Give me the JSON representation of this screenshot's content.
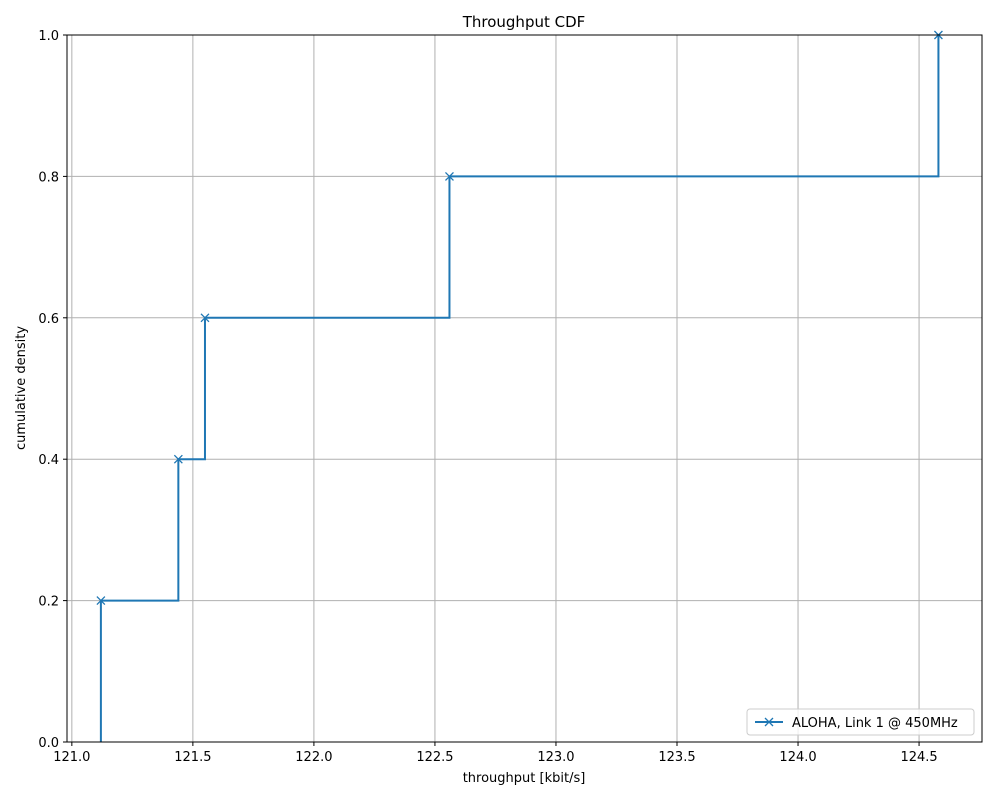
{
  "chart_data": {
    "type": "line",
    "title": "Throughput CDF",
    "xlabel": "throughput [kbit/s]",
    "ylabel": "cumulative density",
    "xlim": [
      120.98,
      124.76
    ],
    "ylim": [
      0.0,
      1.0
    ],
    "xticks": [
      "121.0",
      "121.5",
      "122.0",
      "122.5",
      "123.0",
      "123.5",
      "124.0",
      "124.5"
    ],
    "xtick_values": [
      121.0,
      121.5,
      122.0,
      122.5,
      123.0,
      123.5,
      124.0,
      124.5
    ],
    "yticks": [
      "0.0",
      "0.2",
      "0.4",
      "0.6",
      "0.8",
      "1.0"
    ],
    "ytick_values": [
      0.0,
      0.2,
      0.4,
      0.6,
      0.8,
      1.0
    ],
    "grid": true,
    "step": "post",
    "legend_position": "lower-right",
    "series": [
      {
        "name": "ALOHA, Link 1 @ 450MHz",
        "color": "#1f77b4",
        "marker": "x",
        "x": [
          121.12,
          121.12,
          121.44,
          121.55,
          122.56,
          124.58
        ],
        "y": [
          0.0,
          0.2,
          0.4,
          0.6,
          0.8,
          1.0
        ],
        "marker_indices": [
          1,
          2,
          3,
          4,
          5
        ]
      }
    ]
  }
}
